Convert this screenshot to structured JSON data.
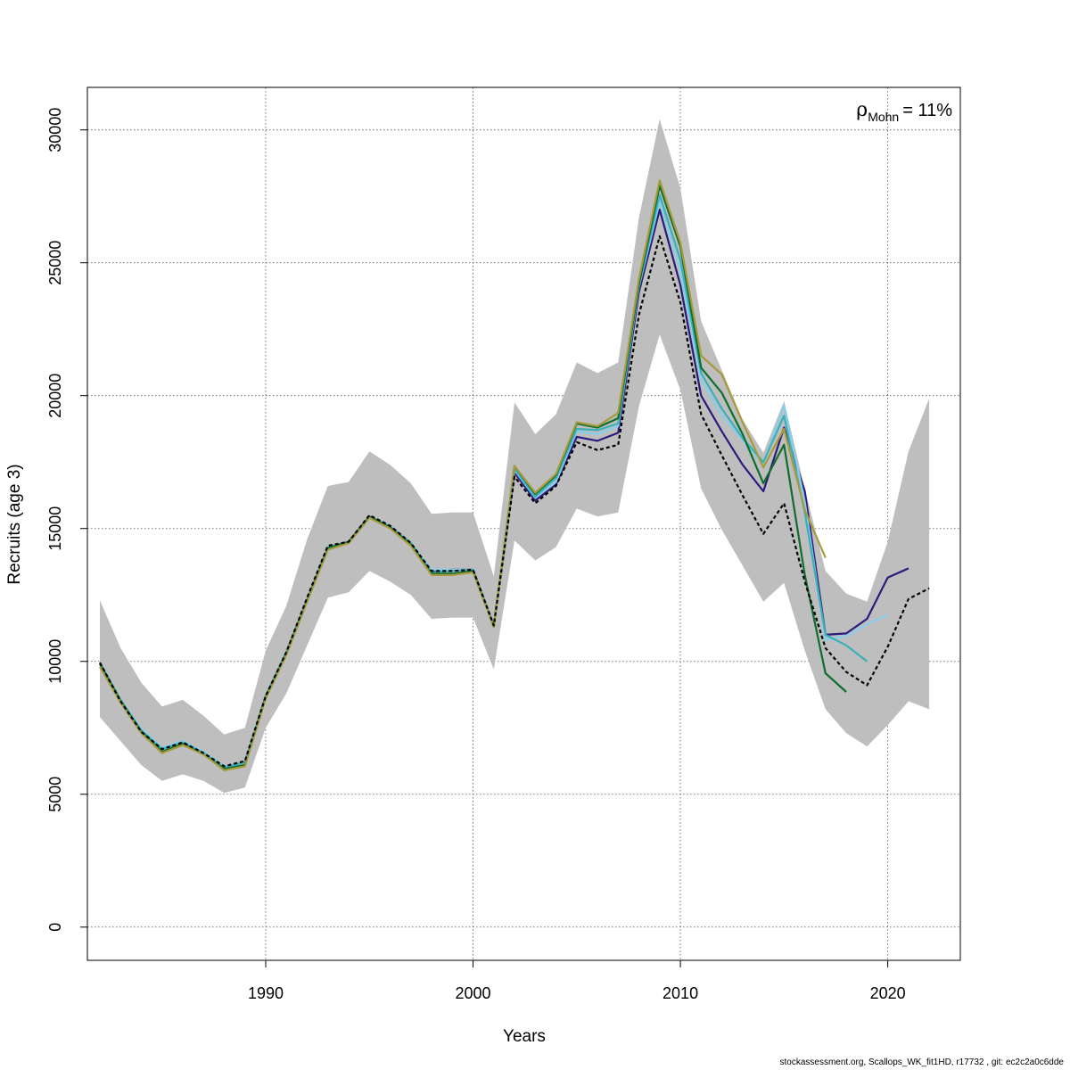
{
  "chart_data": {
    "type": "line",
    "xlabel": "Years",
    "ylabel": "Recruits (age 3)",
    "xlim": [
      1981.4,
      2023.5
    ],
    "ylim": [
      -1250,
      31600
    ],
    "x_ticks": [
      1990,
      2000,
      2010,
      2020
    ],
    "x_tick_labels": [
      "1990",
      "2000",
      "2010",
      "2020"
    ],
    "y_ticks": [
      0,
      5000,
      10000,
      15000,
      20000,
      25000,
      30000
    ],
    "y_tick_labels": [
      "0",
      "5000",
      "10000",
      "15000",
      "20000",
      "25000",
      "30000"
    ],
    "grid": true,
    "annotation": {
      "symbol": "ρ",
      "subscript": "Mohn",
      "value": "= 11%"
    },
    "band_color": "#bebebe",
    "confidence_band": {
      "x": [
        1982,
        1983,
        1984,
        1985,
        1986,
        1987,
        1988,
        1989,
        1990,
        1991,
        1992,
        1993,
        1994,
        1995,
        1996,
        1997,
        1998,
        1999,
        2000,
        2001,
        2002,
        2003,
        2004,
        2005,
        2006,
        2007,
        2008,
        2009,
        2010,
        2011,
        2012,
        2013,
        2014,
        2015,
        2016,
        2017,
        2018,
        2019,
        2020,
        2021,
        2022
      ],
      "lower": [
        7900,
        7000,
        6100,
        5500,
        5750,
        5500,
        5050,
        5250,
        7500,
        8800,
        10600,
        12400,
        12600,
        13400,
        13000,
        12500,
        11600,
        11650,
        11650,
        9700,
        14550,
        13800,
        14300,
        15750,
        15450,
        15600,
        19600,
        22300,
        20200,
        16500,
        14950,
        13600,
        12250,
        12950,
        10400,
        8200,
        7300,
        6800,
        7600,
        8500,
        8200
      ],
      "upper": [
        12300,
        10500,
        9200,
        8300,
        8550,
        7950,
        7250,
        7500,
        10400,
        12100,
        14600,
        16600,
        16750,
        17900,
        17400,
        16700,
        15550,
        15600,
        15600,
        13200,
        19750,
        18550,
        19300,
        21250,
        20850,
        21250,
        26700,
        30400,
        27800,
        22800,
        20950,
        19100,
        17850,
        19800,
        16500,
        13400,
        12550,
        12250,
        14500,
        17900,
        19900
      ]
    },
    "series": [
      {
        "color": "#000000",
        "dashed": true,
        "x": [
          1982,
          1983,
          1984,
          1985,
          1986,
          1987,
          1988,
          1989,
          1990,
          1991,
          1992,
          1993,
          1994,
          1995,
          1996,
          1997,
          1998,
          1999,
          2000,
          2001,
          2002,
          2003,
          2004,
          2005,
          2006,
          2007,
          2008,
          2009,
          2010,
          2011,
          2012,
          2013,
          2014,
          2015,
          2016,
          2017,
          2018,
          2019,
          2020,
          2021,
          2022
        ],
        "values": [
          9950,
          8500,
          7350,
          6700,
          6950,
          6550,
          6050,
          6250,
          8700,
          10350,
          12400,
          14350,
          14500,
          15500,
          15100,
          14450,
          13400,
          13400,
          13450,
          11350,
          16950,
          15950,
          16600,
          18250,
          17950,
          18150,
          23050,
          26000,
          23500,
          19300,
          17750,
          16250,
          14800,
          15950,
          13000,
          10500,
          9600,
          9100,
          10550,
          12350,
          12750
        ]
      },
      {
        "color": "#2d1a7c",
        "x": [
          1982,
          1983,
          1984,
          1985,
          1986,
          1987,
          1988,
          1989,
          1990,
          1991,
          1992,
          1993,
          1994,
          1995,
          1996,
          1997,
          1998,
          1999,
          2000,
          2001,
          2002,
          2003,
          2004,
          2005,
          2006,
          2007,
          2008,
          2009,
          2010,
          2011,
          2012,
          2013,
          2014,
          2015,
          2016,
          2017,
          2018,
          2019,
          2020,
          2021
        ],
        "values": [
          9950,
          8550,
          7400,
          6700,
          6950,
          6550,
          6050,
          6200,
          8700,
          10350,
          12350,
          14300,
          14500,
          15450,
          15100,
          14450,
          13400,
          13450,
          13450,
          11350,
          17100,
          16050,
          16650,
          18450,
          18300,
          18600,
          23900,
          27000,
          24150,
          20000,
          18650,
          17400,
          16400,
          18800,
          16400,
          11000,
          11050,
          11600,
          13150,
          13500
        ]
      },
      {
        "color": "#87ceeb",
        "x": [
          1982,
          1983,
          1984,
          1985,
          1986,
          1987,
          1988,
          1989,
          1990,
          1991,
          1992,
          1993,
          1994,
          1995,
          1996,
          1997,
          1998,
          1999,
          2000,
          2001,
          2002,
          2003,
          2004,
          2005,
          2006,
          2007,
          2008,
          2009,
          2010,
          2011,
          2012,
          2013,
          2014,
          2015,
          2016,
          2017,
          2018,
          2019,
          2020
        ],
        "values": [
          9950,
          8550,
          7450,
          6750,
          7000,
          6600,
          6050,
          6200,
          8700,
          10350,
          12350,
          14300,
          14500,
          15450,
          15100,
          14450,
          13450,
          13450,
          13450,
          11350,
          17200,
          16150,
          16750,
          18650,
          18550,
          18850,
          24100,
          27300,
          24700,
          20600,
          19250,
          18350,
          17400,
          19650,
          16000,
          10800,
          10950,
          11400,
          11750
        ]
      },
      {
        "color": "#3ab0b8",
        "x": [
          1982,
          1983,
          1984,
          1985,
          1986,
          1987,
          1988,
          1989,
          1990,
          1991,
          1992,
          1993,
          1994,
          1995,
          1996,
          1997,
          1998,
          1999,
          2000,
          2001,
          2002,
          2003,
          2004,
          2005,
          2006,
          2007,
          2008,
          2009,
          2010,
          2011,
          2012,
          2013,
          2014,
          2015,
          2016,
          2017,
          2018,
          2019
        ],
        "values": [
          9950,
          8550,
          7400,
          6700,
          6950,
          6550,
          6000,
          6200,
          8700,
          10350,
          12300,
          14300,
          14500,
          15450,
          15050,
          14450,
          13350,
          13400,
          13450,
          11350,
          17250,
          16200,
          16900,
          18750,
          18700,
          18950,
          24150,
          27550,
          25100,
          20850,
          19500,
          18400,
          17500,
          19250,
          15600,
          11000,
          10600,
          10000
        ]
      },
      {
        "color": "#0d6e2d",
        "x": [
          1982,
          1983,
          1984,
          1985,
          1986,
          1987,
          1988,
          1989,
          1990,
          1991,
          1992,
          1993,
          1994,
          1995,
          1996,
          1997,
          1998,
          1999,
          2000,
          2001,
          2002,
          2003,
          2004,
          2005,
          2006,
          2007,
          2008,
          2009,
          2010,
          2011,
          2012,
          2013,
          2014,
          2015,
          2016,
          2017,
          2018
        ],
        "values": [
          9900,
          8500,
          7350,
          6600,
          6900,
          6500,
          5950,
          6100,
          8650,
          10300,
          12300,
          14250,
          14500,
          15450,
          15050,
          14400,
          13300,
          13300,
          13400,
          11300,
          17350,
          16300,
          17000,
          18950,
          18800,
          19150,
          24200,
          27900,
          25600,
          21050,
          20100,
          18550,
          16700,
          18150,
          13250,
          9550,
          8850
        ]
      },
      {
        "color": "#a69a3a",
        "x": [
          1982,
          1983,
          1984,
          1985,
          1986,
          1987,
          1988,
          1989,
          1990,
          1991,
          1992,
          1993,
          1994,
          1995,
          1996,
          1997,
          1998,
          1999,
          2000,
          2001,
          2002,
          2003,
          2004,
          2005,
          2006,
          2007,
          2008,
          2009,
          2010,
          2011,
          2012,
          2013,
          2014,
          2015,
          2016,
          2017
        ],
        "values": [
          9800,
          8450,
          7300,
          6550,
          6850,
          6500,
          5900,
          6050,
          8600,
          10250,
          12250,
          14200,
          14450,
          15400,
          15000,
          14350,
          13250,
          13250,
          13350,
          11300,
          17350,
          16350,
          17050,
          19000,
          18850,
          19350,
          24400,
          28100,
          25750,
          21500,
          20800,
          19000,
          17300,
          18750,
          15700,
          13900
        ]
      }
    ],
    "footer": "stockassessment.org, Scallops_WK_fit1HD, r17732 , git: ec2c2a0c6dde"
  }
}
